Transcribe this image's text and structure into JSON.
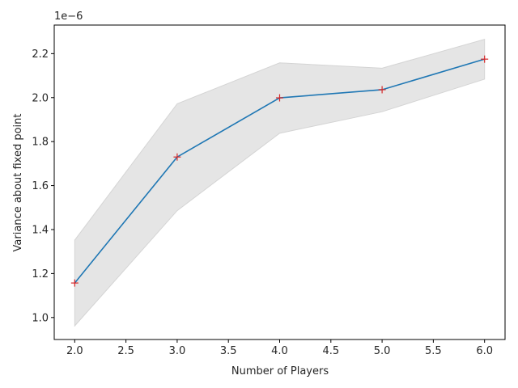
{
  "chart_data": {
    "type": "line",
    "title": "",
    "xlabel": "Number of Players",
    "ylabel": "Variance about fixed point",
    "y_offset_label": "1e−6",
    "y_scale_factor": 1e-06,
    "x": [
      2,
      3,
      4,
      5,
      6
    ],
    "series": [
      {
        "values": [
          1.157,
          1.73,
          1.999,
          2.036,
          2.175
        ],
        "band_upper": [
          1.352,
          1.972,
          2.158,
          2.134,
          2.265
        ],
        "band_lower": [
          0.962,
          1.486,
          1.838,
          1.936,
          2.084
        ],
        "line_color": "#1f77b4",
        "marker_color": "#d62728",
        "band_color": "#e5e5e5"
      }
    ],
    "xlim": [
      1.8,
      6.2
    ],
    "ylim": [
      0.9,
      2.33
    ],
    "xticks": [
      2.0,
      2.5,
      3.0,
      3.5,
      4.0,
      4.5,
      5.0,
      5.5,
      6.0
    ],
    "xtick_labels": [
      "2.0",
      "2.5",
      "3.0",
      "3.5",
      "4.0",
      "4.5",
      "5.0",
      "5.5",
      "6.0"
    ],
    "yticks": [
      1.0,
      1.2,
      1.4,
      1.6,
      1.8,
      2.0,
      2.2
    ],
    "ytick_labels": [
      "1.0",
      "1.2",
      "1.4",
      "1.6",
      "1.8",
      "2.0",
      "2.2"
    ],
    "grid": false,
    "legend": false
  }
}
